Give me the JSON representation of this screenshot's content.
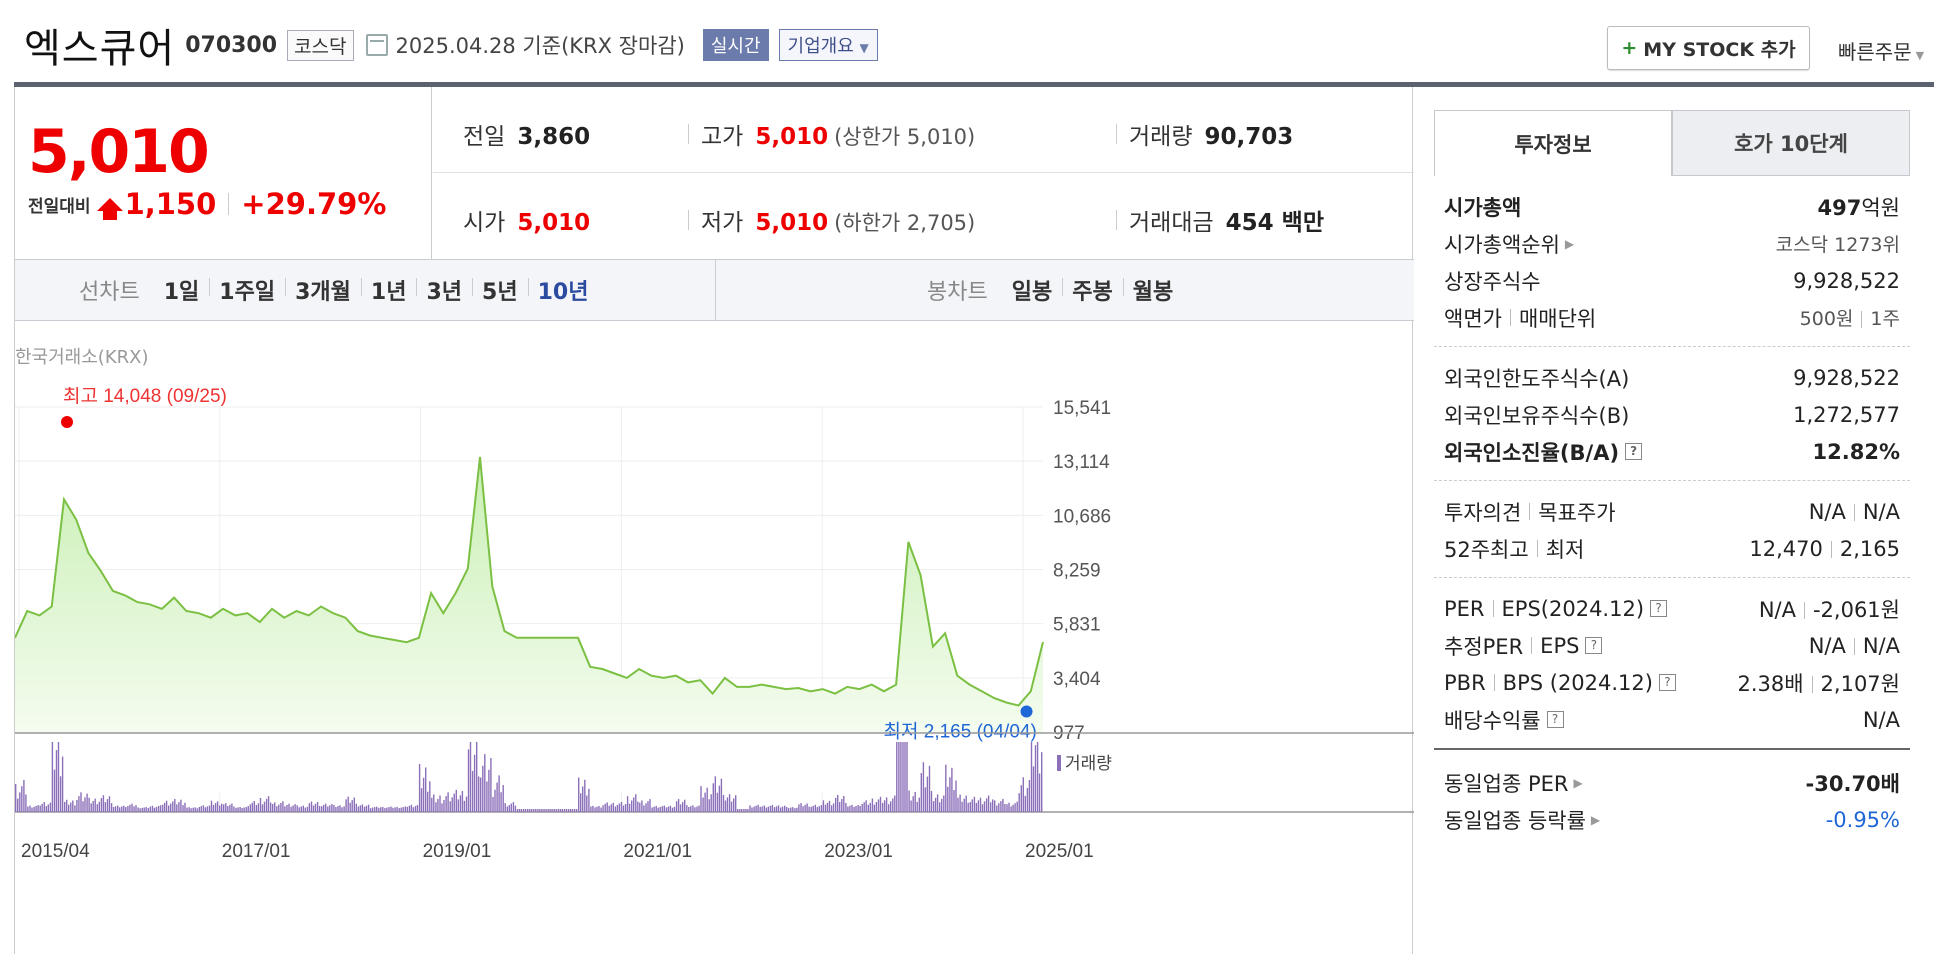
{
  "header": {
    "stock_name": "엑스큐어",
    "stock_code": "070300",
    "market_tag": "코스닥",
    "date_text": "2025.04.28 기준(KRX 장마감)",
    "realtime_btn": "실시간",
    "company_btn": "기업개요",
    "mystock_btn": "MY STOCK 추가",
    "quick_order": "빠른주문"
  },
  "price": {
    "current": "5,010",
    "change_label": "전일대비",
    "change_amount": "1,150",
    "change_pct": "+29.79%"
  },
  "summary": {
    "prev_label": "전일",
    "prev_value": "3,860",
    "high_label": "고가",
    "high_value": "5,010",
    "upper_limit": "(상한가 5,010)",
    "volume_label": "거래량",
    "volume_value": "90,703",
    "open_label": "시가",
    "open_value": "5,010",
    "low_label": "저가",
    "low_value": "5,010",
    "lower_limit": "(하한가 2,705)",
    "amount_label": "거래대금",
    "amount_value": "454 백만"
  },
  "period_tabs": {
    "line_label": "선차트",
    "line_items": [
      "1일",
      "1주일",
      "3개월",
      "1년",
      "3년",
      "5년",
      "10년"
    ],
    "selected": "10년",
    "candle_label": "봉차트",
    "candle_items": [
      "일봉",
      "주봉",
      "월봉"
    ]
  },
  "chart_source": "한국거래소(KRX)",
  "chart_data": {
    "type": "area",
    "title": "",
    "x_ticks": [
      "2015/04",
      "2017/01",
      "2019/01",
      "2021/01",
      "2023/01",
      "2025/01"
    ],
    "y_ticks": [
      "15,541",
      "13,114",
      "10,686",
      "8,259",
      "5,831",
      "3,404",
      "977"
    ],
    "ylim": [
      977,
      15541
    ],
    "max_annotation": "최고 14,048 (09/25)",
    "min_annotation": "최저 2,165 (04/04)",
    "volume_label": "거래량",
    "series": [
      {
        "values": [
          5200,
          6400,
          6200,
          6600,
          11400,
          10500,
          9000,
          8200,
          7300,
          7100,
          6800,
          6700,
          6500,
          7000,
          6400,
          6300,
          6100,
          6500,
          6200,
          6300,
          5900,
          6500,
          6100,
          6400,
          6200,
          6600,
          6300,
          6100,
          5500,
          5300,
          5200,
          5100,
          5000,
          5200,
          7200,
          6300,
          7200,
          8300,
          13300,
          7500,
          5500,
          5200,
          5200,
          5200,
          5200,
          5200,
          5200,
          3900,
          3800,
          3600,
          3400,
          3800,
          3500,
          3400,
          3500,
          3200,
          3300,
          2700,
          3400,
          3000,
          3000,
          3100,
          3000,
          2900,
          2950,
          2800,
          2900,
          2700,
          3000,
          2900,
          3100,
          2800,
          3100,
          9500,
          8000,
          4800,
          5400,
          3500,
          3100,
          2800,
          2500,
          2300,
          2165,
          2800,
          5010
        ]
      }
    ]
  },
  "invest_panel": {
    "tab_on": "투자정보",
    "tab_off": "호가 10단계",
    "market_cap_label": "시가총액",
    "market_cap_value": "497",
    "market_cap_unit": "억원",
    "cap_rank_label": "시가총액순위",
    "cap_rank_value": "코스닥 1273위",
    "shares_label": "상장주식수",
    "shares_value": "9,928,522",
    "par_label": "액면가",
    "unit_label": "매매단위",
    "par_value": "500원",
    "unit_value": "1주",
    "foreign_limit_label": "외국인한도주식수(A)",
    "foreign_limit_value": "9,928,522",
    "foreign_hold_label": "외국인보유주식수(B)",
    "foreign_hold_value": "1,272,577",
    "foreign_ratio_label": "외국인소진율(B/A)",
    "foreign_ratio_value": "12.82%",
    "opinion_label": "투자의견",
    "target_label": "목표주가",
    "opinion_value": "N/A",
    "target_value": "N/A",
    "w52_high_label": "52주최고",
    "w52_low_label": "최저",
    "w52_high_value": "12,470",
    "w52_low_value": "2,165",
    "per_label": "PER",
    "eps_label": "EPS(2024.12)",
    "per_value": "N/A",
    "eps_value": "-2,061원",
    "est_per_label": "추정PER",
    "est_eps_label": "EPS",
    "est_per_value": "N/A",
    "est_eps_value": "N/A",
    "pbr_label": "PBR",
    "bps_label": "BPS (2024.12)",
    "pbr_value": "2.38배",
    "bps_value": "2,107원",
    "div_label": "배당수익률",
    "div_value": "N/A",
    "sector_per_label": "동일업종 PER",
    "sector_per_value": "-30.70배",
    "sector_rate_label": "동일업종 등락률",
    "sector_rate_value": "-0.95%"
  }
}
